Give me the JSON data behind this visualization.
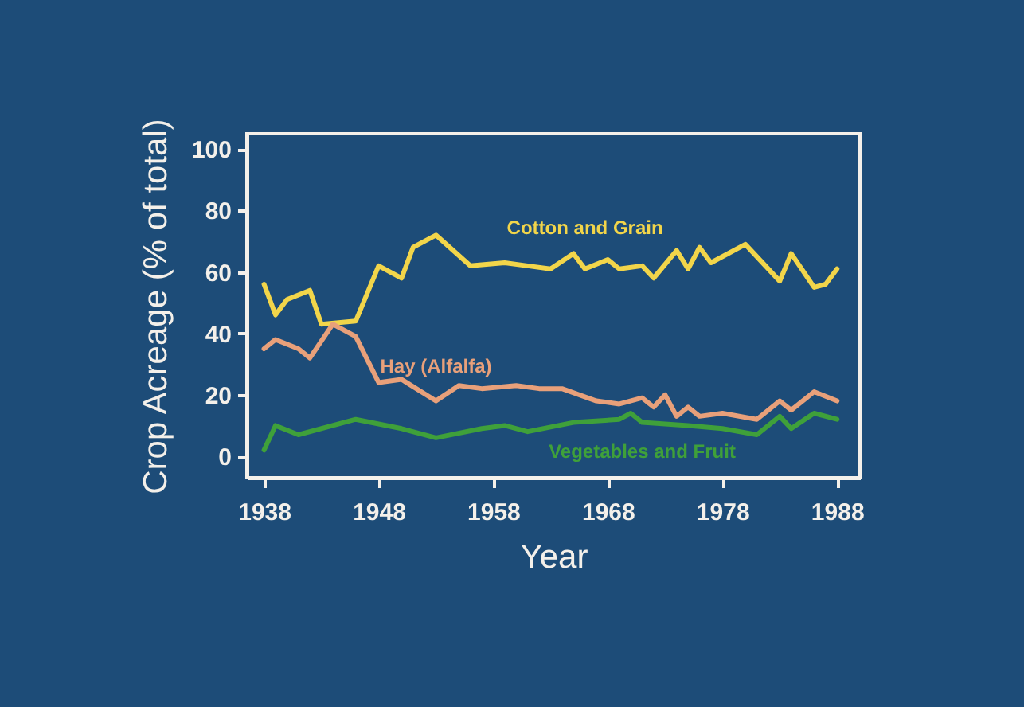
{
  "chart_data": {
    "type": "line",
    "xlabel": "Year",
    "ylabel": "Crop Acreage (% of total)",
    "xlim": [
      1936.5,
      1990
    ],
    "ylim": [
      -7,
      105
    ],
    "xticks": [
      1938,
      1948,
      1958,
      1968,
      1978,
      1988
    ],
    "yticks": [
      0,
      20,
      40,
      60,
      80,
      100
    ],
    "grid": false,
    "marker": "none",
    "line_style": "solid",
    "series": [
      {
        "name": "Cotton and Grain",
        "color": "#f2d54a",
        "x": [
          1938,
          1939,
          1940,
          1942,
          1943,
          1946,
          1948,
          1950,
          1951,
          1953,
          1956,
          1959,
          1961,
          1963,
          1965,
          1966,
          1968,
          1969,
          1971,
          1972,
          1974,
          1975,
          1976,
          1977,
          1980,
          1983,
          1984,
          1986,
          1987,
          1988
        ],
        "values": [
          56,
          46,
          51,
          54,
          43,
          44,
          62,
          58,
          68,
          72,
          62,
          63,
          62,
          61,
          66,
          61,
          64,
          61,
          62,
          58,
          67,
          61,
          68,
          63,
          69,
          57,
          66,
          55,
          56,
          61
        ]
      },
      {
        "name": "Hay (Alfalfa)",
        "color": "#e8a07a",
        "x": [
          1938,
          1939,
          1941,
          1942,
          1944,
          1946,
          1948,
          1950,
          1953,
          1955,
          1957,
          1960,
          1962,
          1964,
          1967,
          1969,
          1971,
          1972,
          1973,
          1974,
          1975,
          1976,
          1978,
          1981,
          1983,
          1984,
          1986,
          1988
        ],
        "values": [
          35,
          38,
          35,
          32,
          43,
          39,
          24,
          25,
          18,
          23,
          22,
          23,
          22,
          22,
          18,
          17,
          19,
          16,
          20,
          13,
          16,
          13,
          14,
          12,
          18,
          15,
          21,
          18
        ]
      },
      {
        "name": "Vegetables and Fruit",
        "color": "#3fa03a",
        "x": [
          1938,
          1939,
          1941,
          1946,
          1950,
          1953,
          1957,
          1959,
          1961,
          1965,
          1969,
          1970,
          1971,
          1975,
          1978,
          1981,
          1983,
          1984,
          1986,
          1988
        ],
        "values": [
          2,
          10,
          7,
          12,
          9,
          6,
          9,
          10,
          8,
          11,
          12,
          14,
          11,
          10,
          9,
          7,
          13,
          9,
          14,
          12
        ]
      }
    ]
  }
}
